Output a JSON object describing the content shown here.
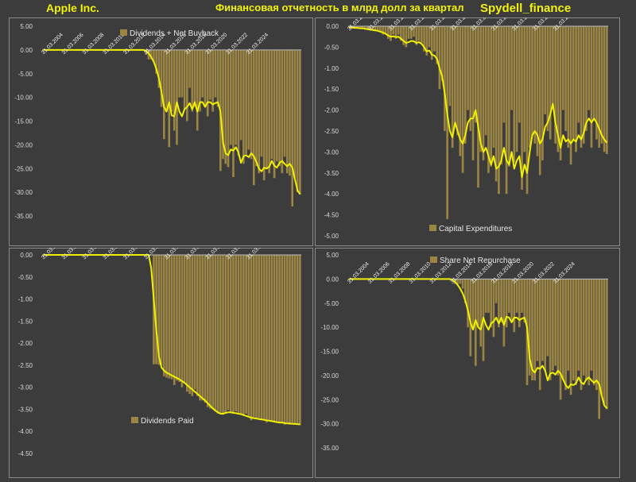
{
  "header": {
    "company": "Apple Inc.",
    "title": "Финансовая отчетность в млрд долл за квартал",
    "brand": "Spydell_finance"
  },
  "colors": {
    "background": "#3c3c3c",
    "bar": "#9a8544",
    "line": "#f0f000",
    "axis_text": "#d8d8d8",
    "header_text": "#f2f20a"
  },
  "chart_data": [
    {
      "type": "bar",
      "legend": "Dividends + Net Buyback",
      "legend_position": "top-right",
      "x_tick_labels": [
        "31.03.2004",
        "31.03.2006",
        "31.03.2008",
        "31.03.2010",
        "31.03.2012",
        "31.03.2014",
        "31.03.2016",
        "31.03.2018",
        "31.03.2020",
        "31.03.2022",
        "31.03.2024"
      ],
      "y_ticks": [
        "5.00",
        "0.00",
        "-5.00",
        "-10.00",
        "-15.00",
        "-20.00",
        "-25.00",
        "-30.00",
        "-35.00"
      ],
      "ylim": [
        -35,
        5
      ],
      "x_start": "2004-03-31",
      "values": [
        0.1,
        0.1,
        0.1,
        0.1,
        0.1,
        0.1,
        0.1,
        0.1,
        0.1,
        0.1,
        0.1,
        0.1,
        0.1,
        0.1,
        0.1,
        0.1,
        0.1,
        0.1,
        0.1,
        0.1,
        0.1,
        0.1,
        0.1,
        0.1,
        0.1,
        0.1,
        0.1,
        0.1,
        0.1,
        0.1,
        0.1,
        0.1,
        0.1,
        0.1,
        0.1,
        0.1,
        0.1,
        0.1,
        0.1,
        0.1,
        -1,
        -2,
        -2,
        -2.5,
        -5,
        -8,
        -12,
        -18.8,
        -13,
        -20.5,
        -13,
        -17,
        -20,
        -10,
        -10,
        -12.5,
        -15,
        -8,
        -13,
        -12,
        -17,
        -13,
        -10,
        -12,
        -14,
        -10.5,
        -13,
        -10,
        -12,
        -25.5,
        -23,
        -24,
        -24.7,
        -20,
        -26.8,
        -20,
        -22.3,
        -19,
        -24,
        -22,
        -21,
        -23,
        -28.5,
        -24.5,
        -26,
        -22.5,
        -27.5,
        -25,
        -26,
        -23,
        -27,
        -23.5,
        -24.5,
        -26,
        -22.5,
        -26,
        -26.5,
        -33,
        -27,
        -30,
        -30.5
      ],
      "trend": [
        0,
        0,
        0,
        0,
        0,
        0,
        0,
        0,
        0,
        0,
        0,
        0,
        0,
        0,
        0,
        0,
        0,
        0,
        0,
        0,
        0,
        0,
        0,
        0,
        0,
        0,
        0,
        0,
        0,
        0,
        0,
        0,
        0,
        0,
        0,
        0,
        0,
        0,
        0,
        0,
        -0.2,
        -0.7,
        -1.5,
        -2.5,
        -4,
        -6,
        -8.8,
        -12,
        -13,
        -11,
        -13.8,
        -14,
        -11,
        -13,
        -14,
        -12.5,
        -12,
        -11.2,
        -12.5,
        -11,
        -13,
        -11,
        -11,
        -12,
        -11,
        -11,
        -11.5,
        -11.2,
        -11,
        -13,
        -19.5,
        -21.8,
        -22.2,
        -21,
        -21.2,
        -20.5,
        -21.6,
        -23.8,
        -22.4,
        -22.2,
        -22.6,
        -21.8,
        -22.4,
        -23.6,
        -25,
        -25.6,
        -24.8,
        -25,
        -24.6,
        -23.4,
        -24.4,
        -24.8,
        -23.8,
        -23.4,
        -24,
        -24.5,
        -24,
        -24.8,
        -27.2,
        -29.6,
        -30.4
      ]
    },
    {
      "type": "bar",
      "legend": "Capital Expenditures",
      "legend_position": "bottom-right",
      "x_tick_labels": [
        "31.03.2004",
        "31.03.2006",
        "31.03.2008",
        "31.03.2010",
        "31.03.2012",
        "31.03.2014",
        "31.03.2016",
        "31.03.2018",
        "31.03.2020",
        "31.03.2022",
        "31.03.2024"
      ],
      "y_ticks": [
        "0.00",
        "-0.50",
        "-1.00",
        "-1.50",
        "-2.00",
        "-2.50",
        "-3.00",
        "-3.50",
        "-4.00",
        "-4.50",
        "-5.00"
      ],
      "ylim": [
        -5,
        0
      ],
      "x_start": "2004-03-31",
      "values": [
        -0.02,
        -0.03,
        -0.03,
        -0.05,
        -0.03,
        -0.05,
        -0.06,
        -0.08,
        -0.1,
        -0.1,
        -0.12,
        -0.1,
        -0.15,
        -0.2,
        -0.18,
        -0.3,
        -0.35,
        -0.2,
        -0.3,
        -0.2,
        -0.35,
        -0.45,
        -0.5,
        -0.3,
        -0.3,
        -0.25,
        -0.45,
        -0.35,
        -0.4,
        -0.6,
        -0.7,
        -0.5,
        -0.8,
        -0.6,
        -0.9,
        -1.5,
        -1.3,
        -2.5,
        -4.6,
        -1.9,
        -2.9,
        -2.4,
        -2.6,
        -3.1,
        -3.5,
        -2.8,
        -2.0,
        -2.5,
        -3.2,
        -2.3,
        -3.85,
        -3.0,
        -3.2,
        -2.6,
        -3.5,
        -3.35,
        -2.9,
        -3.7,
        -4.0,
        -3.3,
        -2.3,
        -4.0,
        -3.35,
        -2.0,
        -3.25,
        -3.0,
        -2.3,
        -3.9,
        -3.0,
        -4.0,
        -2.9,
        -2.6,
        -2.8,
        -3.1,
        -3.55,
        -3.2,
        -2.1,
        -2.5,
        -2.7,
        -1.9,
        -2.8,
        -3.0,
        -3.2,
        -2.0,
        -2.5,
        -2.9,
        -3.3,
        -2.7,
        -3.0,
        -2.3,
        -2.9,
        -2.8,
        -2.5,
        -2.0,
        -2.9,
        -2.2,
        -2.7,
        -2.9,
        -2.8,
        -3.0,
        -3.05
      ],
      "trend": [
        -0.03,
        -0.03,
        -0.04,
        -0.04,
        -0.05,
        -0.05,
        -0.06,
        -0.07,
        -0.08,
        -0.09,
        -0.1,
        -0.11,
        -0.13,
        -0.15,
        -0.18,
        -0.22,
        -0.25,
        -0.24,
        -0.26,
        -0.25,
        -0.3,
        -0.35,
        -0.4,
        -0.38,
        -0.35,
        -0.36,
        -0.4,
        -0.38,
        -0.42,
        -0.5,
        -0.6,
        -0.58,
        -0.68,
        -0.7,
        -0.78,
        -1.0,
        -1.2,
        -1.6,
        -2.1,
        -2.5,
        -2.65,
        -2.3,
        -2.5,
        -2.7,
        -2.8,
        -2.6,
        -2.3,
        -2.2,
        -2.2,
        -2.0,
        -2.4,
        -2.8,
        -3.0,
        -2.9,
        -3.1,
        -3.3,
        -3.1,
        -3.4,
        -3.35,
        -3.2,
        -2.9,
        -3.2,
        -3.3,
        -3.0,
        -3.4,
        -3.2,
        -3.1,
        -3.6,
        -3.3,
        -3.5,
        -3.0,
        -2.6,
        -2.5,
        -2.6,
        -2.8,
        -2.7,
        -2.4,
        -2.3,
        -2.1,
        -1.85,
        -2.3,
        -2.6,
        -2.9,
        -2.6,
        -2.75,
        -2.7,
        -2.8,
        -2.7,
        -2.75,
        -2.6,
        -2.7,
        -2.55,
        -2.3,
        -2.2,
        -2.3,
        -2.2,
        -2.3,
        -2.45,
        -2.6,
        -2.7,
        -2.78
      ]
    },
    {
      "type": "bar",
      "legend": "Dividends Paid",
      "legend_position": "bottom-center",
      "x_tick_labels": [
        "31.03.2004",
        "31.03.2006",
        "31.03.2008",
        "31.03.2010",
        "31.03.2012",
        "31.03.2014",
        "31.03.2016",
        "31.03.2018",
        "31.03.2020",
        "31.03.2022",
        "31.03.2024"
      ],
      "y_ticks": [
        "0.00",
        "-0.50",
        "-1.00",
        "-1.50",
        "-2.00",
        "-2.50",
        "-3.00",
        "-3.50",
        "-4.00",
        "-4.50"
      ],
      "ylim": [
        -4.5,
        0
      ],
      "x_start": "2004-03-31",
      "values": [
        0,
        0,
        0,
        0,
        0,
        0,
        0,
        0,
        0,
        0,
        0,
        0,
        0,
        0,
        0,
        0,
        0,
        0,
        0,
        0,
        0,
        0,
        0,
        0,
        0,
        0,
        0,
        0,
        0,
        0,
        0,
        0,
        0,
        0,
        0,
        0,
        0,
        0,
        0,
        0,
        0,
        0,
        0,
        -2.48,
        -2.48,
        -2.49,
        -2.5,
        -2.75,
        -2.78,
        -2.8,
        -2.82,
        -2.95,
        -2.85,
        -2.88,
        -3.0,
        -2.9,
        -3.1,
        -3.15,
        -3.2,
        -3.05,
        -3.2,
        -3.3,
        -3.3,
        -3.35,
        -3.45,
        -3.48,
        -3.5,
        -3.55,
        -3.6,
        -3.6,
        -3.62,
        -3.6,
        -3.52,
        -3.57,
        -3.6,
        -3.55,
        -3.58,
        -3.6,
        -3.65,
        -3.6,
        -3.65,
        -3.75,
        -3.68,
        -3.7,
        -3.7,
        -3.72,
        -3.75,
        -3.8,
        -3.75,
        -3.78,
        -3.78,
        -3.8,
        -3.8,
        -3.82,
        -3.85,
        -3.8,
        -3.85,
        -3.82,
        -3.85,
        -3.84,
        -3.86
      ],
      "trend": [
        0,
        0,
        0,
        0,
        0,
        0,
        0,
        0,
        0,
        0,
        0,
        0,
        0,
        0,
        0,
        0,
        0,
        0,
        0,
        0,
        0,
        0,
        0,
        0,
        0,
        0,
        0,
        0,
        0,
        0,
        0,
        0,
        0,
        0,
        0,
        0,
        0,
        0,
        0,
        0,
        0,
        0,
        -0.3,
        -1.0,
        -1.7,
        -2.3,
        -2.55,
        -2.62,
        -2.67,
        -2.7,
        -2.73,
        -2.76,
        -2.79,
        -2.82,
        -2.86,
        -2.9,
        -2.95,
        -3.0,
        -3.05,
        -3.1,
        -3.15,
        -3.2,
        -3.25,
        -3.3,
        -3.36,
        -3.42,
        -3.48,
        -3.53,
        -3.57,
        -3.6,
        -3.6,
        -3.58,
        -3.57,
        -3.57,
        -3.58,
        -3.59,
        -3.6,
        -3.61,
        -3.63,
        -3.65,
        -3.67,
        -3.69,
        -3.7,
        -3.71,
        -3.72,
        -3.73,
        -3.74,
        -3.75,
        -3.76,
        -3.77,
        -3.78,
        -3.79,
        -3.8,
        -3.8,
        -3.81,
        -3.82,
        -3.82,
        -3.83,
        -3.83,
        -3.84,
        -3.84
      ]
    },
    {
      "type": "bar",
      "legend": "Share Net Repurchase",
      "legend_position": "top-right",
      "x_tick_labels": [
        "31.03.2004",
        "31.03.2006",
        "31.03.2008",
        "31.03.2010",
        "31.03.2012",
        "31.03.2014",
        "31.03.2016",
        "31.03.2018",
        "31.03.2020",
        "31.03.2022",
        "31.03.2024"
      ],
      "y_ticks": [
        "5.00",
        "0.00",
        "-5.00",
        "-10.00",
        "-15.00",
        "-20.00",
        "-25.00",
        "-30.00",
        "-35.00"
      ],
      "ylim": [
        -35,
        5
      ],
      "x_start": "2004-03-31",
      "values": [
        0.1,
        0.1,
        0.1,
        0.1,
        0.1,
        0.1,
        0.1,
        0.1,
        0.1,
        0.1,
        0.1,
        0.1,
        0.1,
        0.1,
        0.1,
        0.1,
        0.1,
        0.1,
        0.1,
        0.1,
        0.1,
        0.1,
        0.1,
        0.1,
        0.1,
        0.1,
        0.1,
        0.1,
        0.1,
        0.1,
        0.1,
        0.1,
        0.1,
        0.1,
        0.1,
        0.1,
        0.1,
        0.1,
        0.1,
        0.1,
        -0.5,
        -1,
        -1,
        -1,
        -2,
        -5,
        -10,
        -16,
        -10,
        -18,
        -10,
        -14,
        -17,
        -7,
        -7,
        -10,
        -12,
        -5,
        -10,
        -9,
        -14,
        -10,
        -7,
        -9,
        -11,
        -7,
        -10,
        -7,
        -9,
        -22,
        -20,
        -21,
        -21,
        -17,
        -23,
        -17,
        -19,
        -16,
        -21,
        -19,
        -18,
        -20,
        -25,
        -21,
        -23,
        -19,
        -24,
        -21,
        -22,
        -19,
        -23,
        -20,
        -21,
        -22,
        -19,
        -22,
        -23,
        -29,
        -24,
        -26,
        -27
      ],
      "trend": [
        0,
        0,
        0,
        0,
        0,
        0,
        0,
        0,
        0,
        0,
        0,
        0,
        0,
        0,
        0,
        0,
        0,
        0,
        0,
        0,
        0,
        0,
        0,
        0,
        0,
        0,
        0,
        0,
        0,
        0,
        0,
        0,
        0,
        0,
        0,
        0,
        0,
        0,
        0,
        0,
        -0.2,
        -0.6,
        -1.2,
        -2,
        -3,
        -4.5,
        -6.5,
        -9,
        -10.5,
        -8.5,
        -10,
        -10.5,
        -8,
        -9.5,
        -10.5,
        -9.2,
        -8.8,
        -8,
        -9.2,
        -8,
        -9.5,
        -7.8,
        -8,
        -9,
        -8,
        -8,
        -8.5,
        -8.2,
        -8,
        -10,
        -16.5,
        -18.8,
        -19.4,
        -18.4,
        -18.6,
        -18,
        -19,
        -21,
        -19.6,
        -19.4,
        -19.8,
        -19,
        -19.6,
        -20.8,
        -22,
        -22.6,
        -21.8,
        -22,
        -21.6,
        -20.4,
        -21.4,
        -21.8,
        -20.8,
        -20.4,
        -21,
        -21.5,
        -21,
        -21.8,
        -24.2,
        -26.2,
        -26.8
      ]
    }
  ]
}
